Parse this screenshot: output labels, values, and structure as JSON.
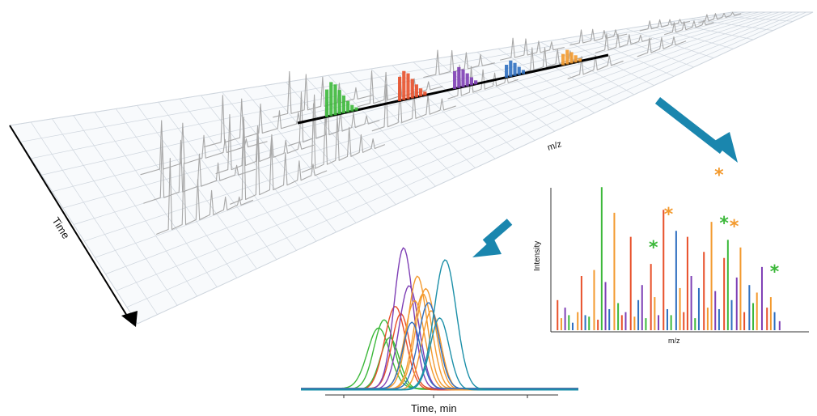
{
  "labels": {
    "time_axis": "Time",
    "mz_axis": "m/z",
    "spectrum_x": "m/z",
    "spectrum_y": "Intensity",
    "chrom_x": "Time, min"
  },
  "colors": {
    "green": "#3cb83a",
    "red": "#e8502a",
    "purple": "#7e3fb5",
    "blue": "#2f6fc0",
    "orange": "#f39a2e",
    "teal": "#1b8fa8",
    "arrow": "#1a86ae",
    "grid": "#cfd6de",
    "trace": "#a8a8a8"
  },
  "icons": {
    "arrow_right": "arrow-down-right-icon",
    "arrow_left": "arrow-down-left-icon",
    "marker": "asterisk-icon"
  },
  "chart_data": [
    {
      "type": "bar",
      "xlabel": "m/z",
      "ylabel": "Intensity",
      "peaks": [
        {
          "x": 0.02,
          "y": 0.2,
          "c": "red"
        },
        {
          "x": 0.035,
          "y": 0.08,
          "c": "orange"
        },
        {
          "x": 0.05,
          "y": 0.15,
          "c": "purple"
        },
        {
          "x": 0.065,
          "y": 0.1,
          "c": "green"
        },
        {
          "x": 0.08,
          "y": 0.05,
          "c": "blue"
        },
        {
          "x": 0.1,
          "y": 0.12,
          "c": "orange"
        },
        {
          "x": 0.115,
          "y": 0.36,
          "c": "red"
        },
        {
          "x": 0.13,
          "y": 0.1,
          "c": "blue"
        },
        {
          "x": 0.145,
          "y": 0.09,
          "c": "green"
        },
        {
          "x": 0.165,
          "y": 0.4,
          "c": "orange"
        },
        {
          "x": 0.18,
          "y": 0.07,
          "c": "red"
        },
        {
          "x": 0.195,
          "y": 0.95,
          "c": "green"
        },
        {
          "x": 0.21,
          "y": 0.32,
          "c": "purple"
        },
        {
          "x": 0.225,
          "y": 0.14,
          "c": "blue"
        },
        {
          "x": 0.245,
          "y": 0.78,
          "c": "orange"
        },
        {
          "x": 0.26,
          "y": 0.18,
          "c": "green"
        },
        {
          "x": 0.275,
          "y": 0.1,
          "c": "red"
        },
        {
          "x": 0.29,
          "y": 0.12,
          "c": "purple"
        },
        {
          "x": 0.31,
          "y": 0.62,
          "c": "red"
        },
        {
          "x": 0.325,
          "y": 0.09,
          "c": "orange"
        },
        {
          "x": 0.34,
          "y": 0.2,
          "c": "blue"
        },
        {
          "x": 0.355,
          "y": 0.3,
          "c": "purple"
        },
        {
          "x": 0.37,
          "y": 0.08,
          "c": "green"
        },
        {
          "x": 0.39,
          "y": 0.44,
          "c": "red"
        },
        {
          "x": 0.405,
          "y": 0.22,
          "c": "orange"
        },
        {
          "x": 0.42,
          "y": 0.1,
          "c": "purple"
        },
        {
          "x": 0.44,
          "y": 0.8,
          "c": "red"
        },
        {
          "x": 0.455,
          "y": 0.14,
          "c": "blue"
        },
        {
          "x": 0.47,
          "y": 0.1,
          "c": "green"
        },
        {
          "x": 0.49,
          "y": 0.66,
          "c": "blue"
        },
        {
          "x": 0.505,
          "y": 0.28,
          "c": "orange"
        },
        {
          "x": 0.52,
          "y": 0.12,
          "c": "red"
        },
        {
          "x": 0.535,
          "y": 0.62,
          "c": "red"
        },
        {
          "x": 0.55,
          "y": 0.36,
          "c": "purple"
        },
        {
          "x": 0.565,
          "y": 0.08,
          "c": "green"
        },
        {
          "x": 0.58,
          "y": 0.28,
          "c": "blue"
        },
        {
          "x": 0.6,
          "y": 0.52,
          "c": "red"
        },
        {
          "x": 0.615,
          "y": 0.15,
          "c": "orange"
        },
        {
          "x": 0.63,
          "y": 0.72,
          "c": "orange"
        },
        {
          "x": 0.645,
          "y": 0.26,
          "c": "purple"
        },
        {
          "x": 0.66,
          "y": 0.14,
          "c": "blue"
        },
        {
          "x": 0.68,
          "y": 0.48,
          "c": "red"
        },
        {
          "x": 0.695,
          "y": 0.6,
          "c": "green"
        },
        {
          "x": 0.71,
          "y": 0.2,
          "c": "blue"
        },
        {
          "x": 0.73,
          "y": 0.35,
          "c": "purple"
        },
        {
          "x": 0.745,
          "y": 0.55,
          "c": "orange"
        },
        {
          "x": 0.76,
          "y": 0.12,
          "c": "red"
        },
        {
          "x": 0.78,
          "y": 0.3,
          "c": "blue"
        },
        {
          "x": 0.795,
          "y": 0.18,
          "c": "green"
        },
        {
          "x": 0.81,
          "y": 0.25,
          "c": "orange"
        },
        {
          "x": 0.83,
          "y": 0.42,
          "c": "purple"
        },
        {
          "x": 0.85,
          "y": 0.15,
          "c": "red"
        },
        {
          "x": 0.865,
          "y": 0.22,
          "c": "orange"
        },
        {
          "x": 0.88,
          "y": 0.12,
          "c": "blue"
        },
        {
          "x": 0.9,
          "y": 0.06,
          "c": "purple"
        }
      ],
      "markers": [
        {
          "x": 0.4,
          "y": 0.5,
          "c": "green"
        },
        {
          "x": 0.46,
          "y": 0.72,
          "c": "orange"
        },
        {
          "x": 0.66,
          "y": 0.98,
          "c": "orange"
        },
        {
          "x": 0.68,
          "y": 0.66,
          "c": "green"
        },
        {
          "x": 0.72,
          "y": 0.64,
          "c": "orange"
        },
        {
          "x": 0.88,
          "y": 0.34,
          "c": "green"
        }
      ]
    },
    {
      "type": "line",
      "xlabel": "Time, min",
      "peaks": [
        {
          "mu": 0.28,
          "sigma": 0.04,
          "h": 0.42,
          "c": "green"
        },
        {
          "mu": 0.3,
          "sigma": 0.036,
          "h": 0.48,
          "c": "green"
        },
        {
          "mu": 0.32,
          "sigma": 0.034,
          "h": 0.36,
          "c": "green"
        },
        {
          "mu": 0.34,
          "sigma": 0.038,
          "h": 0.58,
          "c": "red"
        },
        {
          "mu": 0.36,
          "sigma": 0.032,
          "h": 0.52,
          "c": "red"
        },
        {
          "mu": 0.37,
          "sigma": 0.034,
          "h": 0.98,
          "c": "purple"
        },
        {
          "mu": 0.39,
          "sigma": 0.036,
          "h": 0.72,
          "c": "purple"
        },
        {
          "mu": 0.41,
          "sigma": 0.036,
          "h": 0.62,
          "c": "orange"
        },
        {
          "mu": 0.42,
          "sigma": 0.034,
          "h": 0.78,
          "c": "orange"
        },
        {
          "mu": 0.44,
          "sigma": 0.034,
          "h": 0.66,
          "c": "orange"
        },
        {
          "mu": 0.45,
          "sigma": 0.036,
          "h": 0.7,
          "c": "orange"
        },
        {
          "mu": 0.47,
          "sigma": 0.034,
          "h": 0.55,
          "c": "orange"
        },
        {
          "mu": 0.4,
          "sigma": 0.032,
          "h": 0.46,
          "c": "blue"
        },
        {
          "mu": 0.46,
          "sigma": 0.036,
          "h": 0.6,
          "c": "blue"
        },
        {
          "mu": 0.52,
          "sigma": 0.04,
          "h": 0.9,
          "c": "teal"
        },
        {
          "mu": 0.5,
          "sigma": 0.034,
          "h": 0.5,
          "c": "teal"
        }
      ]
    }
  ]
}
